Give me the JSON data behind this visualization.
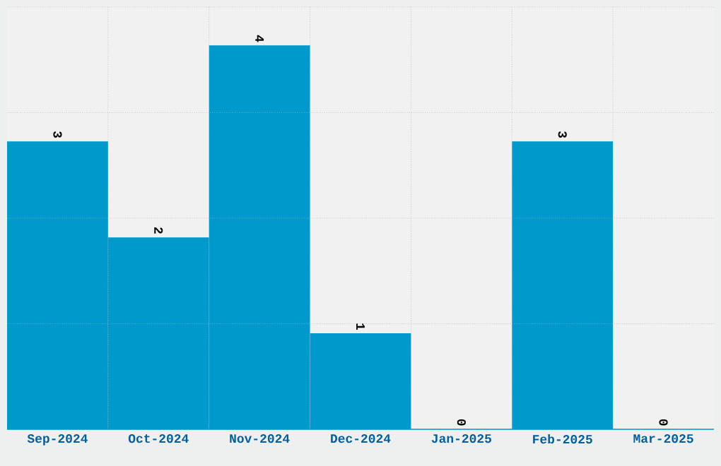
{
  "chart_data": {
    "type": "bar",
    "categories": [
      "Sep-2024",
      "Oct-2024",
      "Nov-2024",
      "Dec-2024",
      "Jan-2025",
      "Feb-2025",
      "Mar-2025"
    ],
    "values": [
      3,
      2,
      4,
      1,
      0,
      3,
      0
    ],
    "color": "#0099cc",
    "ylim": [
      0,
      4.4
    ],
    "yticks": [
      {
        "value": 0,
        "label": null
      },
      {
        "value": 1.1,
        "label": null
      },
      {
        "value": 2.2,
        "label": null
      },
      {
        "value": 3.3,
        "label": null
      },
      {
        "value": 4.4,
        "label": null
      }
    ],
    "tick_labels": "x",
    "grid": true,
    "data_labels": true
  }
}
